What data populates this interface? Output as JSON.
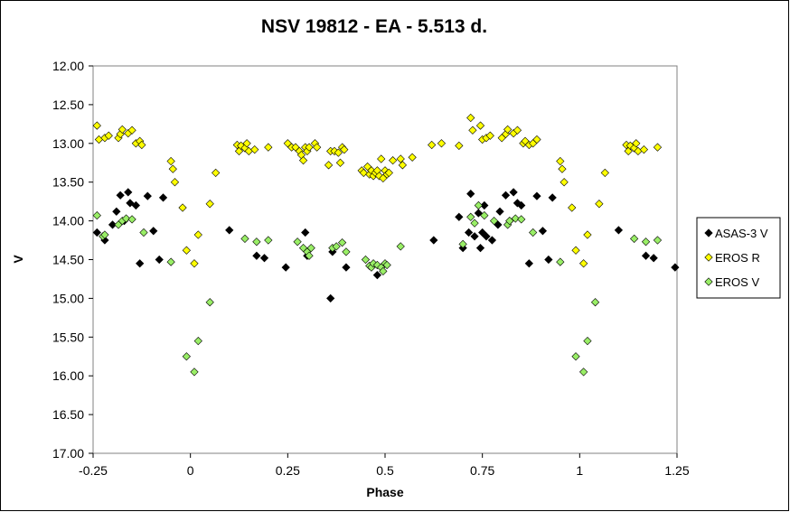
{
  "chart_data": {
    "type": "scatter",
    "title": "NSV 19812 - EA - 5.513 d.",
    "xlabel": "Phase",
    "ylabel": "V",
    "xlim": [
      -0.25,
      1.25
    ],
    "ylim": [
      12.0,
      17.0
    ],
    "y_inverted": true,
    "x_ticks": [
      "-0.25",
      "0",
      "0.25",
      "0.5",
      "0.75",
      "1",
      "1.25"
    ],
    "y_ticks": [
      "12.00",
      "12.50",
      "13.00",
      "13.50",
      "14.00",
      "14.50",
      "15.00",
      "15.50",
      "16.00",
      "16.50",
      "17.00"
    ],
    "grid": false,
    "legend_position": "right",
    "marker": "diamond",
    "series": [
      {
        "name": "ASAS-3 V",
        "color": "#000000",
        "points": [
          [
            -0.24,
            14.15
          ],
          [
            -0.22,
            14.25
          ],
          [
            -0.2,
            14.05
          ],
          [
            -0.19,
            13.88
          ],
          [
            -0.18,
            13.67
          ],
          [
            -0.17,
            14.0
          ],
          [
            -0.16,
            13.63
          ],
          [
            -0.155,
            13.77
          ],
          [
            -0.14,
            13.8
          ],
          [
            -0.13,
            14.55
          ],
          [
            -0.11,
            13.68
          ],
          [
            -0.095,
            14.13
          ],
          [
            -0.08,
            14.5
          ],
          [
            -0.07,
            13.7
          ],
          [
            0.1,
            14.12
          ],
          [
            0.17,
            14.45
          ],
          [
            0.19,
            14.48
          ],
          [
            0.245,
            14.6
          ],
          [
            0.295,
            14.15
          ],
          [
            0.3,
            14.45
          ],
          [
            0.36,
            15.0
          ],
          [
            0.365,
            14.4
          ],
          [
            0.4,
            14.6
          ],
          [
            0.48,
            14.7
          ],
          [
            0.625,
            14.25
          ],
          [
            0.69,
            13.95
          ],
          [
            0.7,
            14.35
          ],
          [
            0.715,
            14.15
          ],
          [
            0.72,
            13.65
          ],
          [
            0.73,
            14.2
          ],
          [
            0.74,
            13.9
          ],
          [
            0.745,
            14.35
          ],
          [
            0.75,
            14.15
          ],
          [
            0.755,
            13.8
          ],
          [
            0.76,
            14.2
          ],
          [
            0.775,
            14.25
          ],
          [
            0.79,
            14.05
          ],
          [
            0.795,
            13.88
          ],
          [
            0.81,
            13.67
          ],
          [
            0.82,
            14.0
          ],
          [
            0.83,
            13.63
          ],
          [
            0.84,
            13.77
          ],
          [
            0.85,
            13.8
          ],
          [
            0.87,
            14.55
          ],
          [
            0.89,
            13.68
          ],
          [
            0.905,
            14.13
          ],
          [
            0.92,
            14.5
          ],
          [
            0.93,
            13.7
          ],
          [
            1.1,
            14.12
          ],
          [
            1.17,
            14.45
          ],
          [
            1.19,
            14.48
          ],
          [
            1.245,
            14.6
          ]
        ]
      },
      {
        "name": "EROS R",
        "color": "#ffff00",
        "points": [
          [
            -0.24,
            12.77
          ],
          [
            -0.235,
            12.95
          ],
          [
            -0.22,
            12.93
          ],
          [
            -0.21,
            12.9
          ],
          [
            -0.185,
            12.93
          ],
          [
            -0.18,
            12.88
          ],
          [
            -0.175,
            12.82
          ],
          [
            -0.16,
            12.87
          ],
          [
            -0.15,
            12.83
          ],
          [
            -0.14,
            13.0
          ],
          [
            -0.13,
            12.97
          ],
          [
            -0.125,
            13.02
          ],
          [
            -0.05,
            13.23
          ],
          [
            -0.045,
            13.33
          ],
          [
            -0.04,
            13.5
          ],
          [
            -0.02,
            13.83
          ],
          [
            -0.01,
            14.38
          ],
          [
            0.01,
            14.55
          ],
          [
            0.02,
            14.18
          ],
          [
            0.05,
            13.78
          ],
          [
            0.065,
            13.38
          ],
          [
            0.12,
            13.02
          ],
          [
            0.125,
            13.1
          ],
          [
            0.13,
            13.03
          ],
          [
            0.14,
            13.06
          ],
          [
            0.145,
            13.0
          ],
          [
            0.15,
            13.1
          ],
          [
            0.165,
            13.08
          ],
          [
            0.2,
            13.05
          ],
          [
            0.25,
            13.0
          ],
          [
            0.26,
            13.05
          ],
          [
            0.27,
            13.05
          ],
          [
            0.28,
            13.1
          ],
          [
            0.285,
            13.15
          ],
          [
            0.29,
            13.22
          ],
          [
            0.295,
            13.05
          ],
          [
            0.3,
            13.1
          ],
          [
            0.305,
            13.05
          ],
          [
            0.32,
            13.0
          ],
          [
            0.325,
            13.05
          ],
          [
            0.36,
            13.1
          ],
          [
            0.355,
            13.28
          ],
          [
            0.37,
            13.1
          ],
          [
            0.38,
            13.12
          ],
          [
            0.385,
            13.25
          ],
          [
            0.39,
            13.05
          ],
          [
            0.395,
            13.08
          ],
          [
            0.44,
            13.35
          ],
          [
            0.445,
            13.38
          ],
          [
            0.455,
            13.3
          ],
          [
            0.46,
            13.4
          ],
          [
            0.465,
            13.35
          ],
          [
            0.47,
            13.42
          ],
          [
            0.475,
            13.38
          ],
          [
            0.48,
            13.35
          ],
          [
            0.485,
            13.42
          ],
          [
            0.49,
            13.2
          ],
          [
            0.495,
            13.45
          ],
          [
            0.5,
            13.35
          ],
          [
            0.505,
            13.4
          ],
          [
            0.51,
            13.38
          ],
          [
            0.52,
            13.22
          ],
          [
            0.54,
            13.2
          ],
          [
            0.545,
            13.28
          ],
          [
            0.57,
            13.18
          ],
          [
            0.62,
            13.02
          ],
          [
            0.645,
            13.0
          ],
          [
            0.69,
            13.03
          ],
          [
            0.72,
            12.67
          ],
          [
            0.725,
            12.83
          ],
          [
            0.745,
            12.77
          ],
          [
            0.75,
            12.95
          ],
          [
            0.76,
            12.93
          ],
          [
            0.77,
            12.9
          ],
          [
            0.8,
            12.93
          ],
          [
            0.81,
            12.88
          ],
          [
            0.815,
            12.82
          ],
          [
            0.83,
            12.87
          ],
          [
            0.84,
            12.83
          ],
          [
            0.855,
            13.0
          ],
          [
            0.86,
            12.97
          ],
          [
            0.87,
            13.02
          ],
          [
            0.88,
            13.0
          ],
          [
            0.89,
            12.95
          ],
          [
            0.95,
            13.23
          ],
          [
            0.955,
            13.33
          ],
          [
            0.96,
            13.5
          ],
          [
            0.98,
            13.83
          ],
          [
            0.99,
            14.38
          ],
          [
            1.01,
            14.55
          ],
          [
            1.02,
            14.18
          ],
          [
            1.05,
            13.78
          ],
          [
            1.065,
            13.38
          ],
          [
            1.12,
            13.02
          ],
          [
            1.125,
            13.1
          ],
          [
            1.13,
            13.03
          ],
          [
            1.14,
            13.06
          ],
          [
            1.145,
            13.0
          ],
          [
            1.15,
            13.1
          ],
          [
            1.165,
            13.08
          ],
          [
            1.2,
            13.05
          ]
        ]
      },
      {
        "name": "EROS V",
        "color": "#99ee66",
        "points": [
          [
            -0.24,
            13.93
          ],
          [
            -0.225,
            14.2
          ],
          [
            -0.22,
            14.18
          ],
          [
            -0.185,
            14.05
          ],
          [
            -0.175,
            14.0
          ],
          [
            -0.165,
            13.97
          ],
          [
            -0.15,
            13.98
          ],
          [
            -0.12,
            14.15
          ],
          [
            -0.05,
            14.53
          ],
          [
            -0.01,
            15.75
          ],
          [
            0.01,
            15.95
          ],
          [
            0.02,
            15.55
          ],
          [
            0.05,
            15.05
          ],
          [
            0.14,
            14.23
          ],
          [
            0.17,
            14.27
          ],
          [
            0.2,
            14.25
          ],
          [
            0.275,
            14.27
          ],
          [
            0.29,
            14.35
          ],
          [
            0.3,
            14.4
          ],
          [
            0.305,
            14.45
          ],
          [
            0.31,
            14.35
          ],
          [
            0.365,
            14.35
          ],
          [
            0.375,
            14.33
          ],
          [
            0.39,
            14.28
          ],
          [
            0.4,
            14.4
          ],
          [
            0.45,
            14.5
          ],
          [
            0.46,
            14.58
          ],
          [
            0.465,
            14.6
          ],
          [
            0.47,
            14.55
          ],
          [
            0.48,
            14.57
          ],
          [
            0.49,
            14.6
          ],
          [
            0.495,
            14.65
          ],
          [
            0.5,
            14.55
          ],
          [
            0.505,
            14.57
          ],
          [
            0.54,
            14.33
          ],
          [
            0.7,
            14.3
          ],
          [
            0.72,
            13.95
          ],
          [
            0.73,
            14.03
          ],
          [
            0.74,
            13.8
          ],
          [
            0.755,
            13.93
          ],
          [
            0.78,
            14.0
          ],
          [
            0.815,
            14.05
          ],
          [
            0.82,
            14.0
          ],
          [
            0.835,
            13.97
          ],
          [
            0.85,
            13.98
          ],
          [
            0.88,
            14.15
          ],
          [
            0.95,
            14.53
          ],
          [
            0.99,
            15.75
          ],
          [
            1.01,
            15.95
          ],
          [
            1.02,
            15.55
          ],
          [
            1.04,
            15.05
          ],
          [
            1.14,
            14.23
          ],
          [
            1.17,
            14.27
          ],
          [
            1.2,
            14.25
          ]
        ]
      }
    ]
  }
}
